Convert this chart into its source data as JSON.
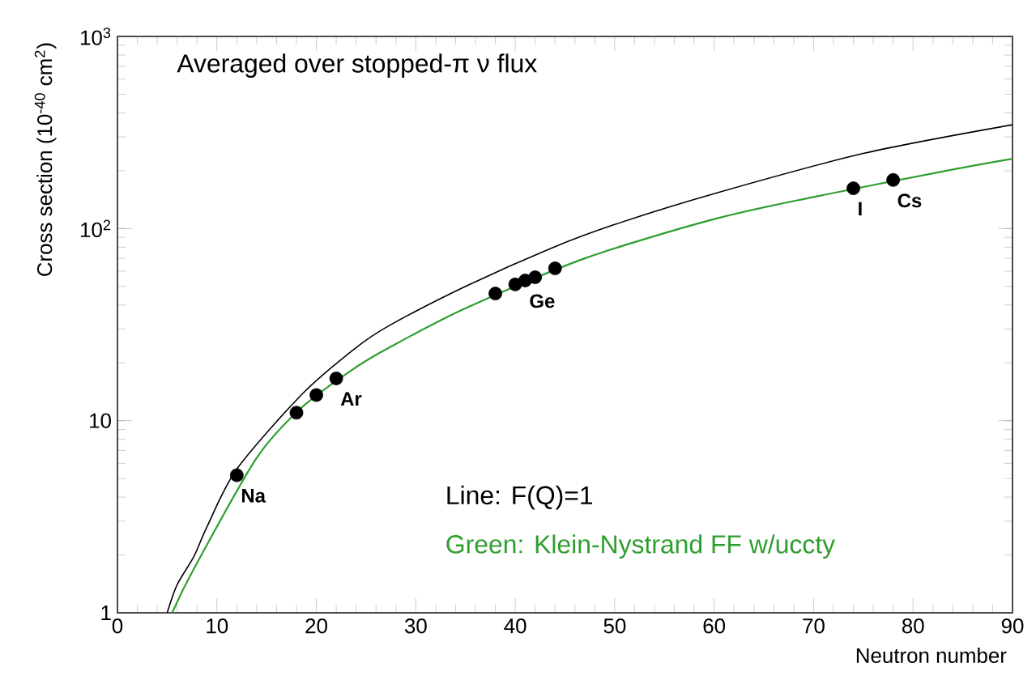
{
  "chart_data": {
    "type": "line",
    "xlabel": "Neutron number",
    "ylabel": "Cross section (10$^{-40}$ cm$^{2}$)",
    "xlim": [
      0,
      90
    ],
    "ylim": [
      1,
      1000
    ],
    "log": "y",
    "grid": false,
    "xticks": [
      0,
      10,
      20,
      30,
      40,
      50,
      60,
      70,
      80,
      90
    ],
    "yticks": [
      1,
      10,
      {
        "value": 100,
        "label": "10$^{2}$"
      },
      {
        "value": 1000,
        "label": "10$^{3}$"
      }
    ],
    "series": [
      {
        "type": "line",
        "marker": "none",
        "name": "Line: F(Q)=1",
        "color": "#000000",
        "x": [
          5.0,
          6,
          7.7,
          9,
          12,
          18.6,
          24,
          27.3,
          35,
          43.6,
          50,
          60,
          75,
          90
        ],
        "values": [
          1,
          1.4,
          1.97,
          2.8,
          5.6,
          13.8,
          24,
          31.2,
          50,
          79,
          105,
          152,
          246,
          347
        ]
      },
      {
        "type": "line",
        "marker": "none",
        "name": "Green: Klein-Nystrand FF w/uccty",
        "color": "#2e9e2e",
        "x": [
          5.5,
          7.7,
          14,
          18.6,
          24,
          27.3,
          35,
          47,
          60,
          70,
          84,
          90
        ],
        "values": [
          1,
          1.7,
          6.4,
          11.8,
          19,
          24,
          38.5,
          70,
          112,
          146,
          203,
          231
        ]
      },
      {
        "type": "scatter",
        "marker": "circle",
        "color": "#000000",
        "x": [
          12,
          18,
          20,
          22,
          38,
          40,
          41,
          42,
          44,
          74,
          78
        ],
        "values": [
          5.2,
          11,
          13.6,
          16.6,
          45.9,
          51.2,
          53.7,
          55.8,
          62.1,
          162,
          179
        ]
      }
    ],
    "annotations": [
      "Averaged over stopped-π ν flux",
      {
        "text": "Na",
        "x": 12,
        "y": 5.2
      },
      {
        "text": "Ar",
        "x": 22,
        "y": 16.6
      },
      {
        "text": "Ge",
        "x": 41,
        "y": 53.7
      },
      {
        "text": "I",
        "x": 74,
        "y": 162
      },
      {
        "text": "Cs",
        "x": 78,
        "y": 179
      }
    ]
  }
}
